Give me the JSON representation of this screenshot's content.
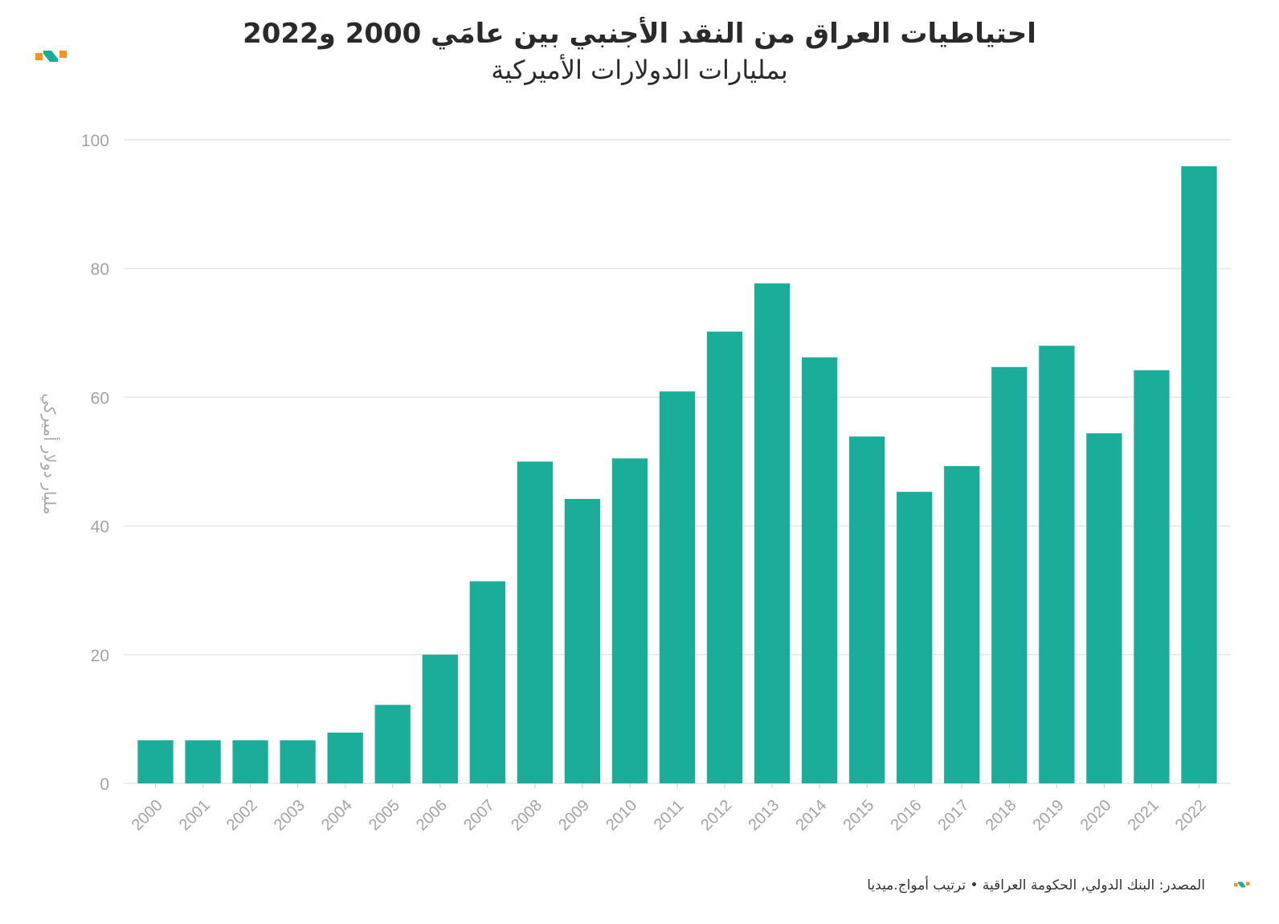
{
  "chart_data": {
    "type": "bar",
    "title": "احتياطيات العراق من النقد الأجنبي بين عامَي 2000 و2022",
    "subtitle": "بمليارات الدولارات الأميركية",
    "ylabel": "مليار دولار أميركي",
    "xlabel": "",
    "ylim": [
      0,
      100
    ],
    "yticks": [
      0,
      20,
      40,
      60,
      80,
      100
    ],
    "categories": [
      "2000",
      "2001",
      "2002",
      "2003",
      "2004",
      "2005",
      "2006",
      "2007",
      "2008",
      "2009",
      "2010",
      "2011",
      "2012",
      "2013",
      "2014",
      "2015",
      "2016",
      "2017",
      "2018",
      "2019",
      "2020",
      "2021",
      "2022"
    ],
    "values": [
      6.7,
      6.7,
      6.7,
      6.7,
      7.9,
      12.2,
      20.0,
      31.4,
      50.0,
      44.2,
      50.5,
      60.9,
      70.2,
      77.7,
      66.2,
      53.9,
      45.3,
      49.3,
      64.7,
      68.0,
      54.4,
      64.2,
      95.9
    ],
    "grid": true,
    "bar_color": "#1aae9a",
    "source": "المصدر: البنك الدولي, الحكومة العراقية • ترتيب أمواج.ميديا"
  },
  "colors": {
    "grid": "#e6e6e6",
    "tick_text": "#a3a3a3",
    "logo_orange": "#f7941d",
    "logo_teal": "#1aae9a"
  }
}
